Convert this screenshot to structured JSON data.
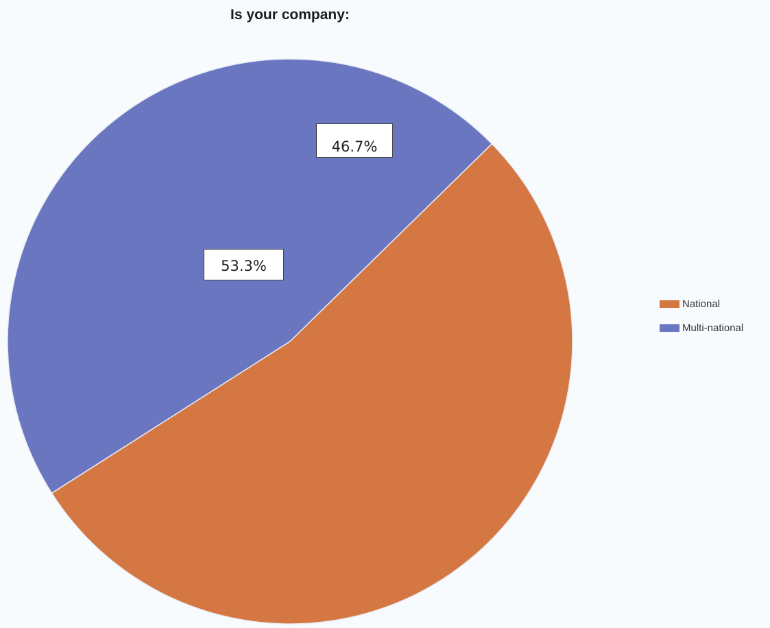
{
  "chart_data": {
    "type": "pie",
    "title": "Is your company:",
    "slices": [
      {
        "label": "National",
        "value": 53.3,
        "display": "53.3%",
        "color": "#d57742"
      },
      {
        "label": "Multi-national",
        "value": 46.7,
        "display": "46.7%",
        "color": "#6a77c0"
      }
    ],
    "legend": {
      "position": "right",
      "entries": [
        "National",
        "Multi-national"
      ]
    }
  }
}
